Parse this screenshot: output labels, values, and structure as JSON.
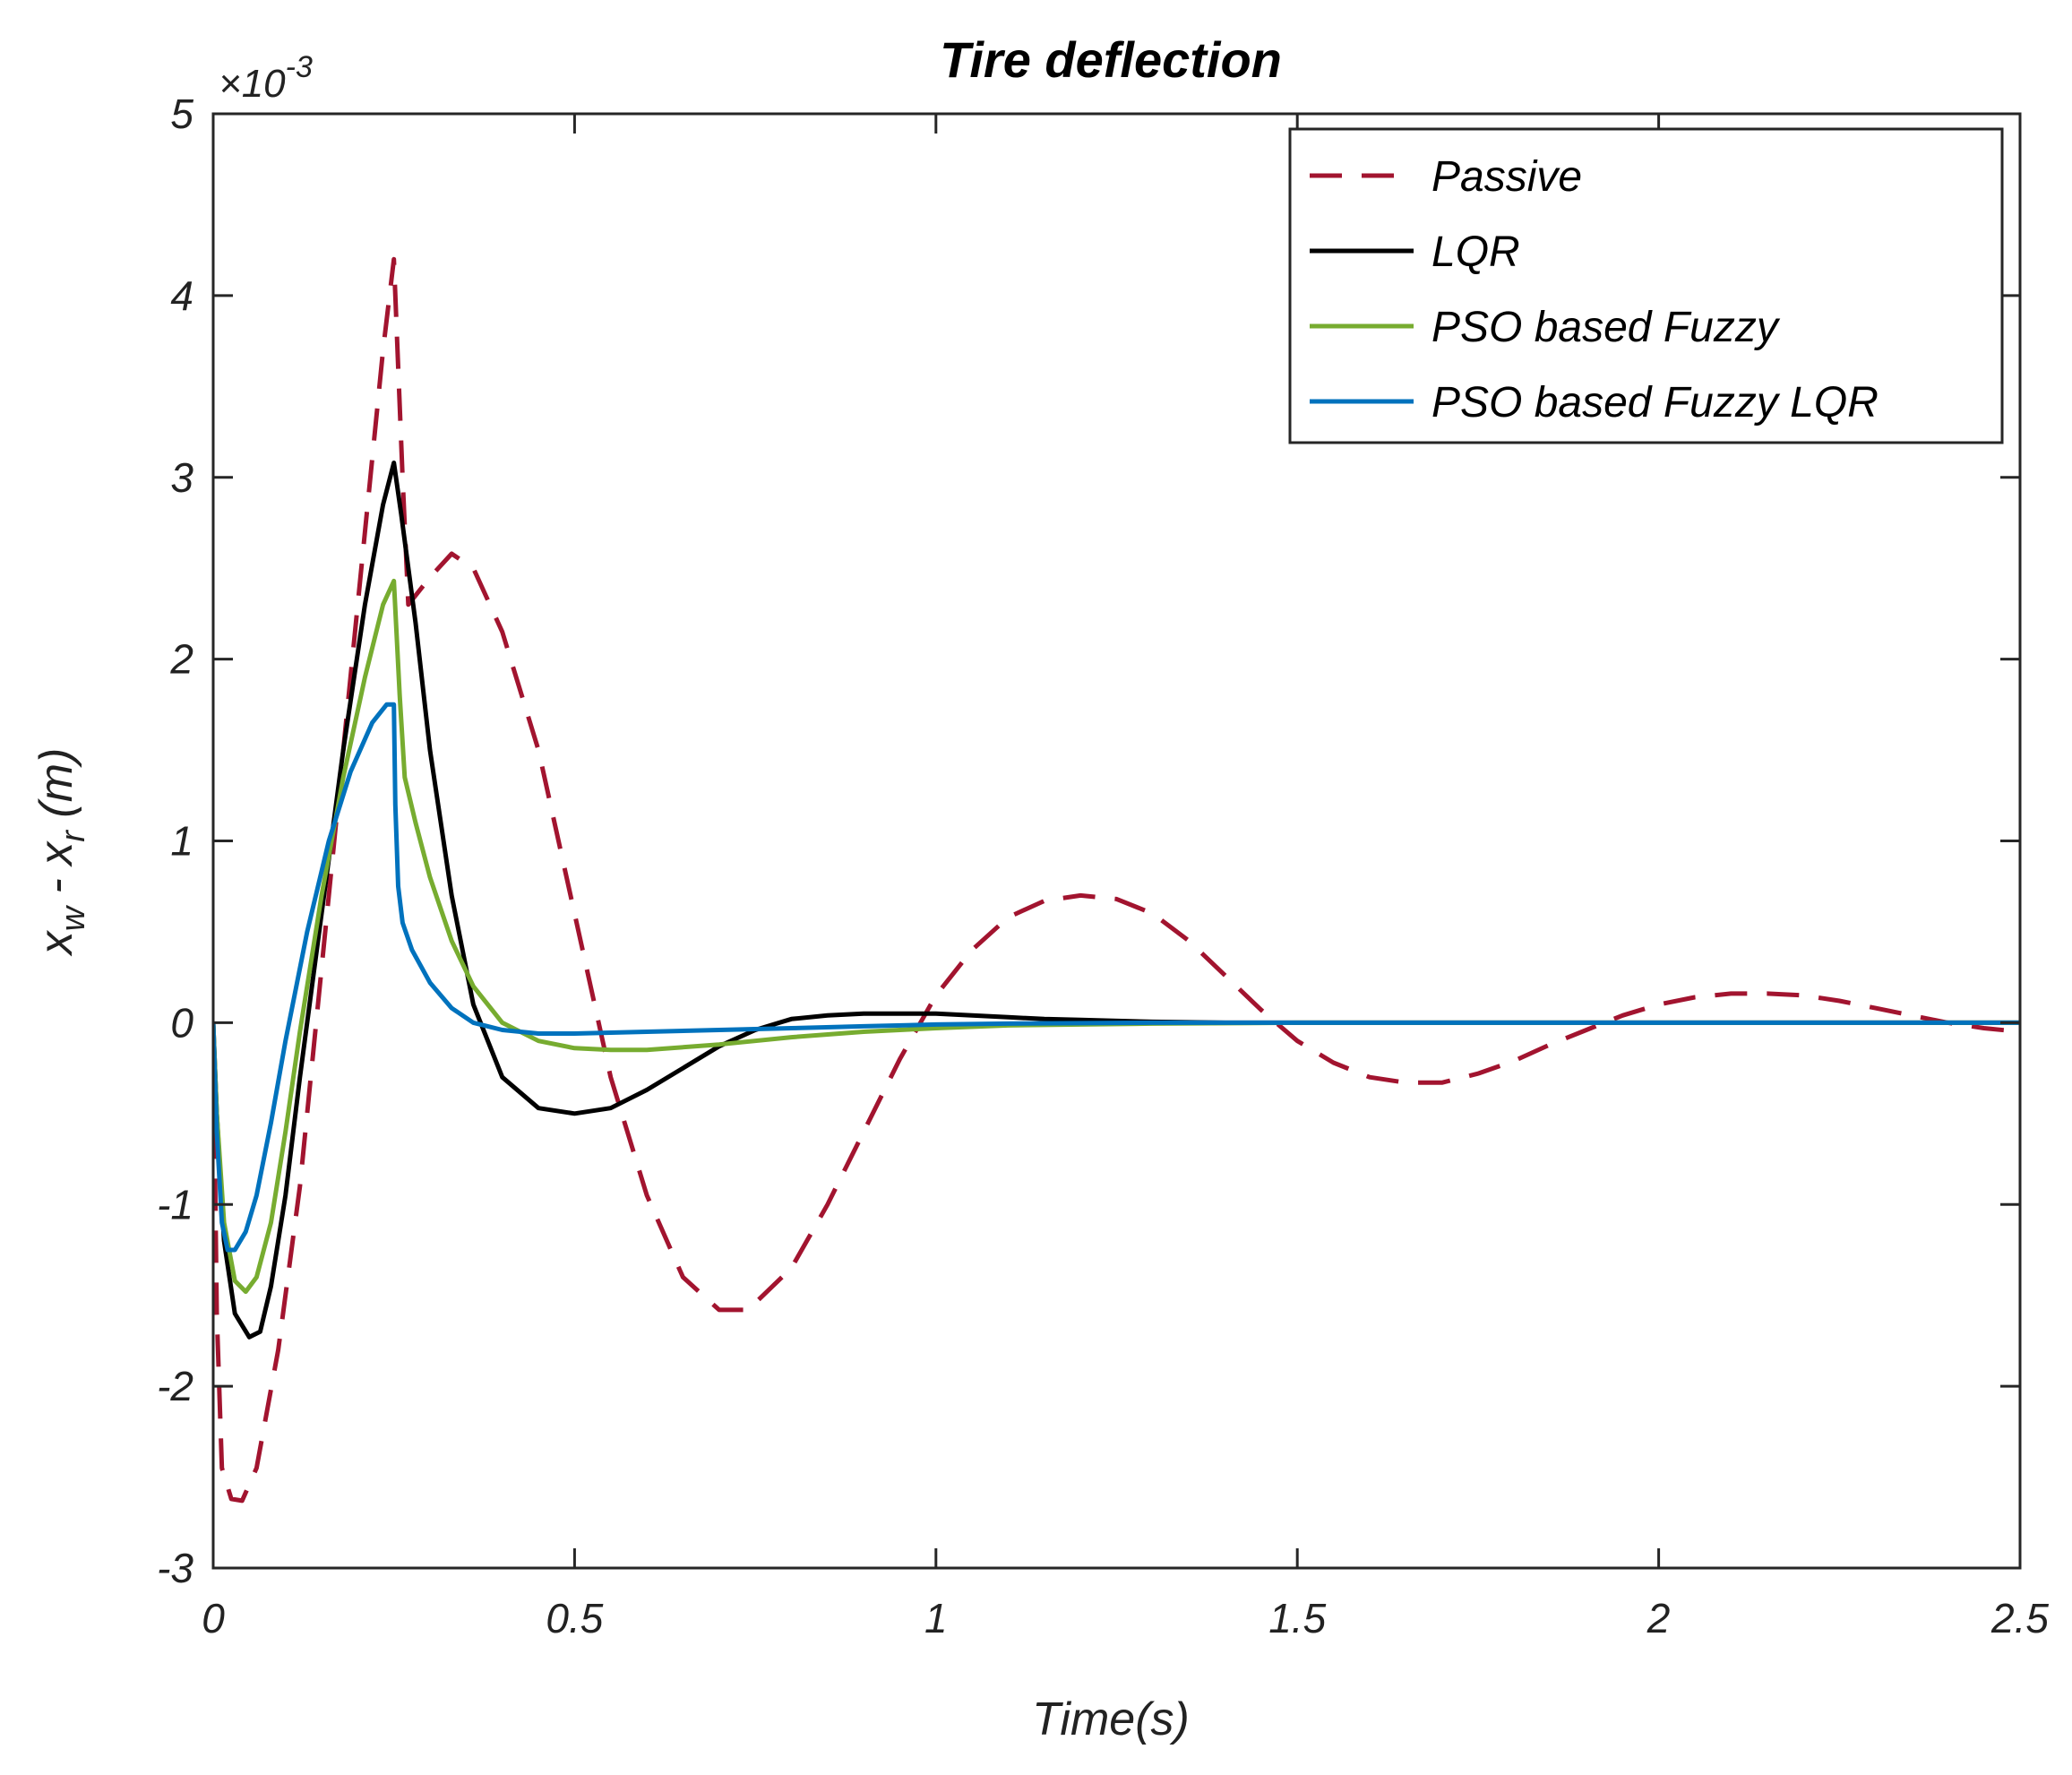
{
  "chart_data": {
    "type": "line",
    "title": "Tire deflection",
    "xlabel": "Time(s)",
    "ylabel": {
      "prefix": "x",
      "sub1": "w",
      "middle": " - x",
      "sub2": "r",
      "suffix": " (m)"
    },
    "y_multiplier": {
      "base": "×10",
      "exponent": "-3"
    },
    "xlim": [
      0,
      2.5
    ],
    "ylim": [
      -3,
      5
    ],
    "x_ticks": [
      0,
      0.5,
      1,
      1.5,
      2,
      2.5
    ],
    "x_tick_labels": [
      "0",
      "0.5",
      "1",
      "1.5",
      "2",
      "2.5"
    ],
    "y_ticks": [
      -3,
      -2,
      -1,
      0,
      1,
      2,
      3,
      4,
      5
    ],
    "y_tick_labels": [
      "-3",
      "-2",
      "-1",
      "0",
      "1",
      "2",
      "3",
      "4",
      "5"
    ],
    "grid": false,
    "legend_position": "top-right",
    "series": [
      {
        "name": "Passive",
        "color": "#a2142f",
        "dash": "dashed",
        "points": [
          [
            0,
            0
          ],
          [
            0.005,
            -1.6
          ],
          [
            0.012,
            -2.45
          ],
          [
            0.025,
            -2.62
          ],
          [
            0.04,
            -2.63
          ],
          [
            0.06,
            -2.45
          ],
          [
            0.09,
            -1.8
          ],
          [
            0.12,
            -0.9
          ],
          [
            0.15,
            0.3
          ],
          [
            0.18,
            1.5
          ],
          [
            0.21,
            2.7
          ],
          [
            0.235,
            3.7
          ],
          [
            0.25,
            4.2
          ],
          [
            0.262,
            3.0
          ],
          [
            0.27,
            2.3
          ],
          [
            0.3,
            2.45
          ],
          [
            0.33,
            2.58
          ],
          [
            0.36,
            2.5
          ],
          [
            0.4,
            2.15
          ],
          [
            0.45,
            1.5
          ],
          [
            0.5,
            0.6
          ],
          [
            0.55,
            -0.3
          ],
          [
            0.6,
            -0.95
          ],
          [
            0.65,
            -1.4
          ],
          [
            0.7,
            -1.58
          ],
          [
            0.74,
            -1.58
          ],
          [
            0.8,
            -1.35
          ],
          [
            0.85,
            -1.0
          ],
          [
            0.9,
            -0.6
          ],
          [
            0.95,
            -0.2
          ],
          [
            1.0,
            0.15
          ],
          [
            1.05,
            0.4
          ],
          [
            1.1,
            0.58
          ],
          [
            1.15,
            0.67
          ],
          [
            1.2,
            0.7
          ],
          [
            1.25,
            0.68
          ],
          [
            1.3,
            0.6
          ],
          [
            1.35,
            0.45
          ],
          [
            1.4,
            0.26
          ],
          [
            1.45,
            0.07
          ],
          [
            1.5,
            -0.1
          ],
          [
            1.55,
            -0.22
          ],
          [
            1.6,
            -0.3
          ],
          [
            1.65,
            -0.33
          ],
          [
            1.7,
            -0.33
          ],
          [
            1.75,
            -0.28
          ],
          [
            1.8,
            -0.21
          ],
          [
            1.85,
            -0.12
          ],
          [
            1.9,
            -0.04
          ],
          [
            1.95,
            0.04
          ],
          [
            2.0,
            0.1
          ],
          [
            2.05,
            0.14
          ],
          [
            2.1,
            0.16
          ],
          [
            2.15,
            0.16
          ],
          [
            2.2,
            0.15
          ],
          [
            2.25,
            0.12
          ],
          [
            2.3,
            0.08
          ],
          [
            2.35,
            0.04
          ],
          [
            2.4,
            0.0
          ],
          [
            2.45,
            -0.03
          ],
          [
            2.5,
            -0.05
          ]
        ]
      },
      {
        "name": "LQR",
        "color": "#000000",
        "dash": "solid",
        "points": [
          [
            0,
            0
          ],
          [
            0.005,
            -0.5
          ],
          [
            0.015,
            -1.2
          ],
          [
            0.03,
            -1.6
          ],
          [
            0.05,
            -1.73
          ],
          [
            0.065,
            -1.7
          ],
          [
            0.08,
            -1.45
          ],
          [
            0.1,
            -0.95
          ],
          [
            0.12,
            -0.3
          ],
          [
            0.15,
            0.6
          ],
          [
            0.18,
            1.5
          ],
          [
            0.21,
            2.3
          ],
          [
            0.235,
            2.85
          ],
          [
            0.25,
            3.08
          ],
          [
            0.26,
            2.8
          ],
          [
            0.28,
            2.2
          ],
          [
            0.3,
            1.5
          ],
          [
            0.33,
            0.7
          ],
          [
            0.36,
            0.1
          ],
          [
            0.4,
            -0.3
          ],
          [
            0.45,
            -0.47
          ],
          [
            0.5,
            -0.5
          ],
          [
            0.55,
            -0.47
          ],
          [
            0.6,
            -0.37
          ],
          [
            0.65,
            -0.25
          ],
          [
            0.7,
            -0.13
          ],
          [
            0.75,
            -0.04
          ],
          [
            0.8,
            0.02
          ],
          [
            0.85,
            0.04
          ],
          [
            0.9,
            0.05
          ],
          [
            0.95,
            0.05
          ],
          [
            1.0,
            0.05
          ],
          [
            1.05,
            0.04
          ],
          [
            1.1,
            0.03
          ],
          [
            1.15,
            0.02
          ],
          [
            1.2,
            0.015
          ],
          [
            1.3,
            0.005
          ],
          [
            1.4,
            0.0
          ],
          [
            1.6,
            0.0
          ],
          [
            2.0,
            0.0
          ],
          [
            2.5,
            0.0
          ]
        ]
      },
      {
        "name": "PSO based Fuzzy",
        "color": "#77ac30",
        "dash": "solid",
        "points": [
          [
            0,
            0
          ],
          [
            0.005,
            -0.5
          ],
          [
            0.015,
            -1.1
          ],
          [
            0.03,
            -1.42
          ],
          [
            0.045,
            -1.48
          ],
          [
            0.06,
            -1.4
          ],
          [
            0.08,
            -1.1
          ],
          [
            0.1,
            -0.6
          ],
          [
            0.12,
            -0.05
          ],
          [
            0.15,
            0.7
          ],
          [
            0.18,
            1.35
          ],
          [
            0.21,
            1.9
          ],
          [
            0.235,
            2.3
          ],
          [
            0.25,
            2.43
          ],
          [
            0.258,
            1.8
          ],
          [
            0.265,
            1.35
          ],
          [
            0.28,
            1.1
          ],
          [
            0.3,
            0.8
          ],
          [
            0.33,
            0.45
          ],
          [
            0.36,
            0.2
          ],
          [
            0.4,
            0.0
          ],
          [
            0.45,
            -0.1
          ],
          [
            0.5,
            -0.14
          ],
          [
            0.55,
            -0.15
          ],
          [
            0.6,
            -0.15
          ],
          [
            0.7,
            -0.12
          ],
          [
            0.8,
            -0.08
          ],
          [
            0.9,
            -0.05
          ],
          [
            1.0,
            -0.03
          ],
          [
            1.1,
            -0.015
          ],
          [
            1.2,
            -0.01
          ],
          [
            1.3,
            -0.005
          ],
          [
            1.5,
            0.0
          ],
          [
            2.0,
            0.0
          ],
          [
            2.5,
            0.0
          ]
        ]
      },
      {
        "name": "PSO based Fuzzy LQR",
        "color": "#0072bd",
        "dash": "solid",
        "points": [
          [
            0,
            0
          ],
          [
            0.005,
            -0.6
          ],
          [
            0.012,
            -1.1
          ],
          [
            0.02,
            -1.25
          ],
          [
            0.03,
            -1.25
          ],
          [
            0.045,
            -1.15
          ],
          [
            0.06,
            -0.95
          ],
          [
            0.08,
            -0.55
          ],
          [
            0.1,
            -0.1
          ],
          [
            0.13,
            0.5
          ],
          [
            0.16,
            1.0
          ],
          [
            0.19,
            1.38
          ],
          [
            0.22,
            1.65
          ],
          [
            0.24,
            1.75
          ],
          [
            0.25,
            1.75
          ],
          [
            0.252,
            1.2
          ],
          [
            0.256,
            0.75
          ],
          [
            0.262,
            0.55
          ],
          [
            0.275,
            0.4
          ],
          [
            0.3,
            0.22
          ],
          [
            0.33,
            0.08
          ],
          [
            0.36,
            0.0
          ],
          [
            0.4,
            -0.04
          ],
          [
            0.45,
            -0.06
          ],
          [
            0.5,
            -0.06
          ],
          [
            0.6,
            -0.05
          ],
          [
            0.7,
            -0.04
          ],
          [
            0.8,
            -0.03
          ],
          [
            0.9,
            -0.02
          ],
          [
            1.0,
            -0.01
          ],
          [
            1.1,
            -0.005
          ],
          [
            1.3,
            0.0
          ],
          [
            2.0,
            0.0
          ],
          [
            2.5,
            0.0
          ]
        ]
      }
    ]
  }
}
